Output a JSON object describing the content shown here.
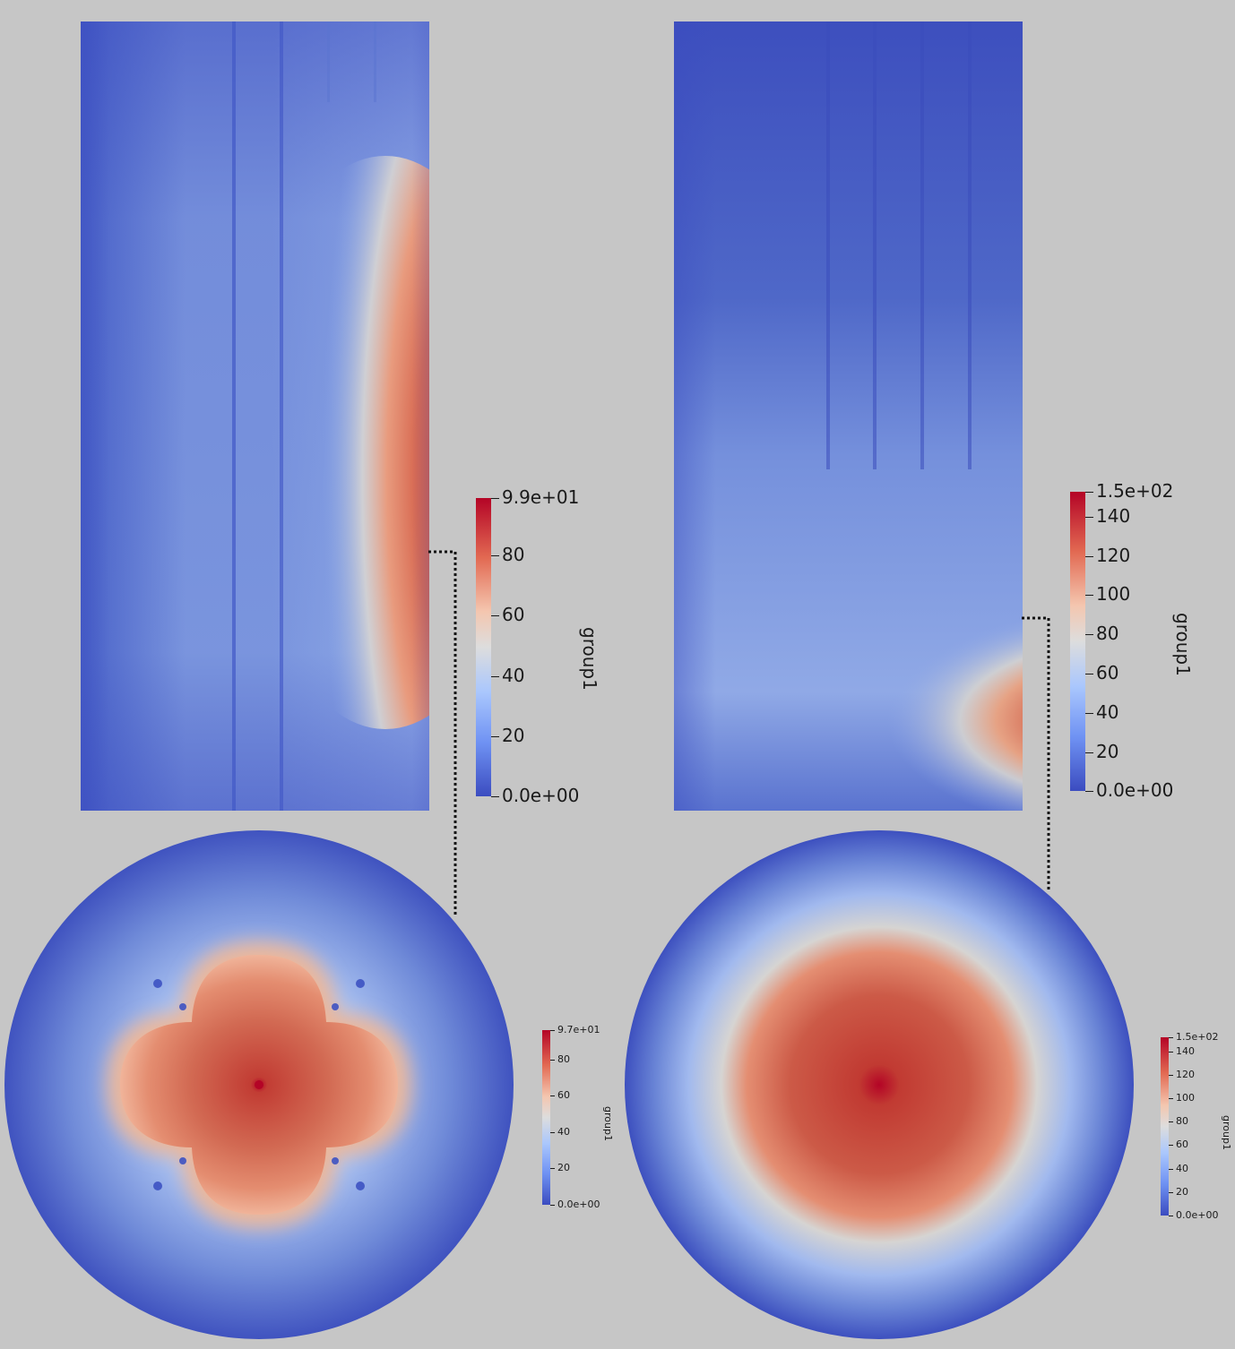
{
  "colors": {
    "background": "#c6c6c6",
    "low": "#3b4cc0",
    "mid": "#dddddd",
    "high": "#b40426"
  },
  "colormap": "coolwarm",
  "panels": [
    {
      "id": "top-left",
      "colorbar": {
        "title": "group1",
        "labels": [
          "9.9e+01",
          "80",
          "60",
          "40",
          "20",
          "0.0e+00"
        ]
      }
    },
    {
      "id": "top-right",
      "colorbar": {
        "title": "group1",
        "labels": [
          "1.5e+02",
          "140",
          "120",
          "100",
          "80",
          "60",
          "40",
          "20",
          "0.0e+00"
        ]
      }
    },
    {
      "id": "bottom-left",
      "colorbar": {
        "title": "group1",
        "labels": [
          "9.7e+01",
          "80",
          "60",
          "40",
          "20",
          "0.0e+00"
        ]
      }
    },
    {
      "id": "bottom-right",
      "colorbar": {
        "title": "group1",
        "labels": [
          "1.5e+02",
          "140",
          "120",
          "100",
          "80",
          "60",
          "40",
          "20",
          "0.0e+00"
        ]
      }
    }
  ]
}
